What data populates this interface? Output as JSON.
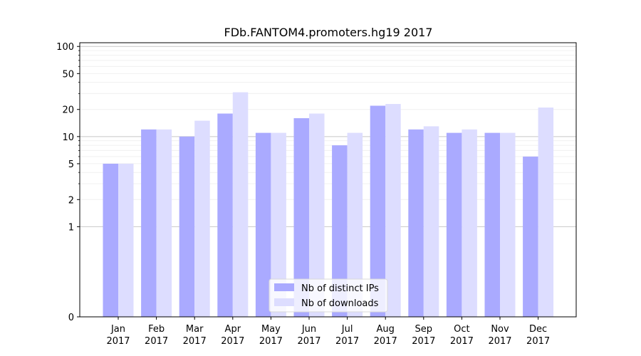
{
  "chart_data": {
    "type": "bar",
    "title": "FDb.FANTOM4.promoters.hg19 2017",
    "xlabel": "",
    "ylabel": "",
    "yscale": "symlog",
    "ylim": [
      0,
      110
    ],
    "yticks": [
      0,
      1,
      2,
      5,
      10,
      20,
      50,
      100
    ],
    "ytick_labels": [
      "0",
      "1",
      "2",
      "5",
      "10",
      "20",
      "50",
      "100"
    ],
    "grid": true,
    "legend_position": "lower-center",
    "categories": [
      [
        "Jan",
        "2017"
      ],
      [
        "Feb",
        "2017"
      ],
      [
        "Mar",
        "2017"
      ],
      [
        "Apr",
        "2017"
      ],
      [
        "May",
        "2017"
      ],
      [
        "Jun",
        "2017"
      ],
      [
        "Jul",
        "2017"
      ],
      [
        "Aug",
        "2017"
      ],
      [
        "Sep",
        "2017"
      ],
      [
        "Oct",
        "2017"
      ],
      [
        "Nov",
        "2017"
      ],
      [
        "Dec",
        "2017"
      ]
    ],
    "series": [
      {
        "name": "Nb of distinct IPs",
        "color": "#aaaaff",
        "values": [
          5,
          12,
          10,
          18,
          11,
          16,
          8,
          22,
          12,
          11,
          11,
          6
        ]
      },
      {
        "name": "Nb of downloads",
        "color": "#ddddff",
        "values": [
          5,
          12,
          15,
          31,
          11,
          18,
          11,
          23,
          13,
          12,
          11,
          21
        ]
      }
    ]
  }
}
